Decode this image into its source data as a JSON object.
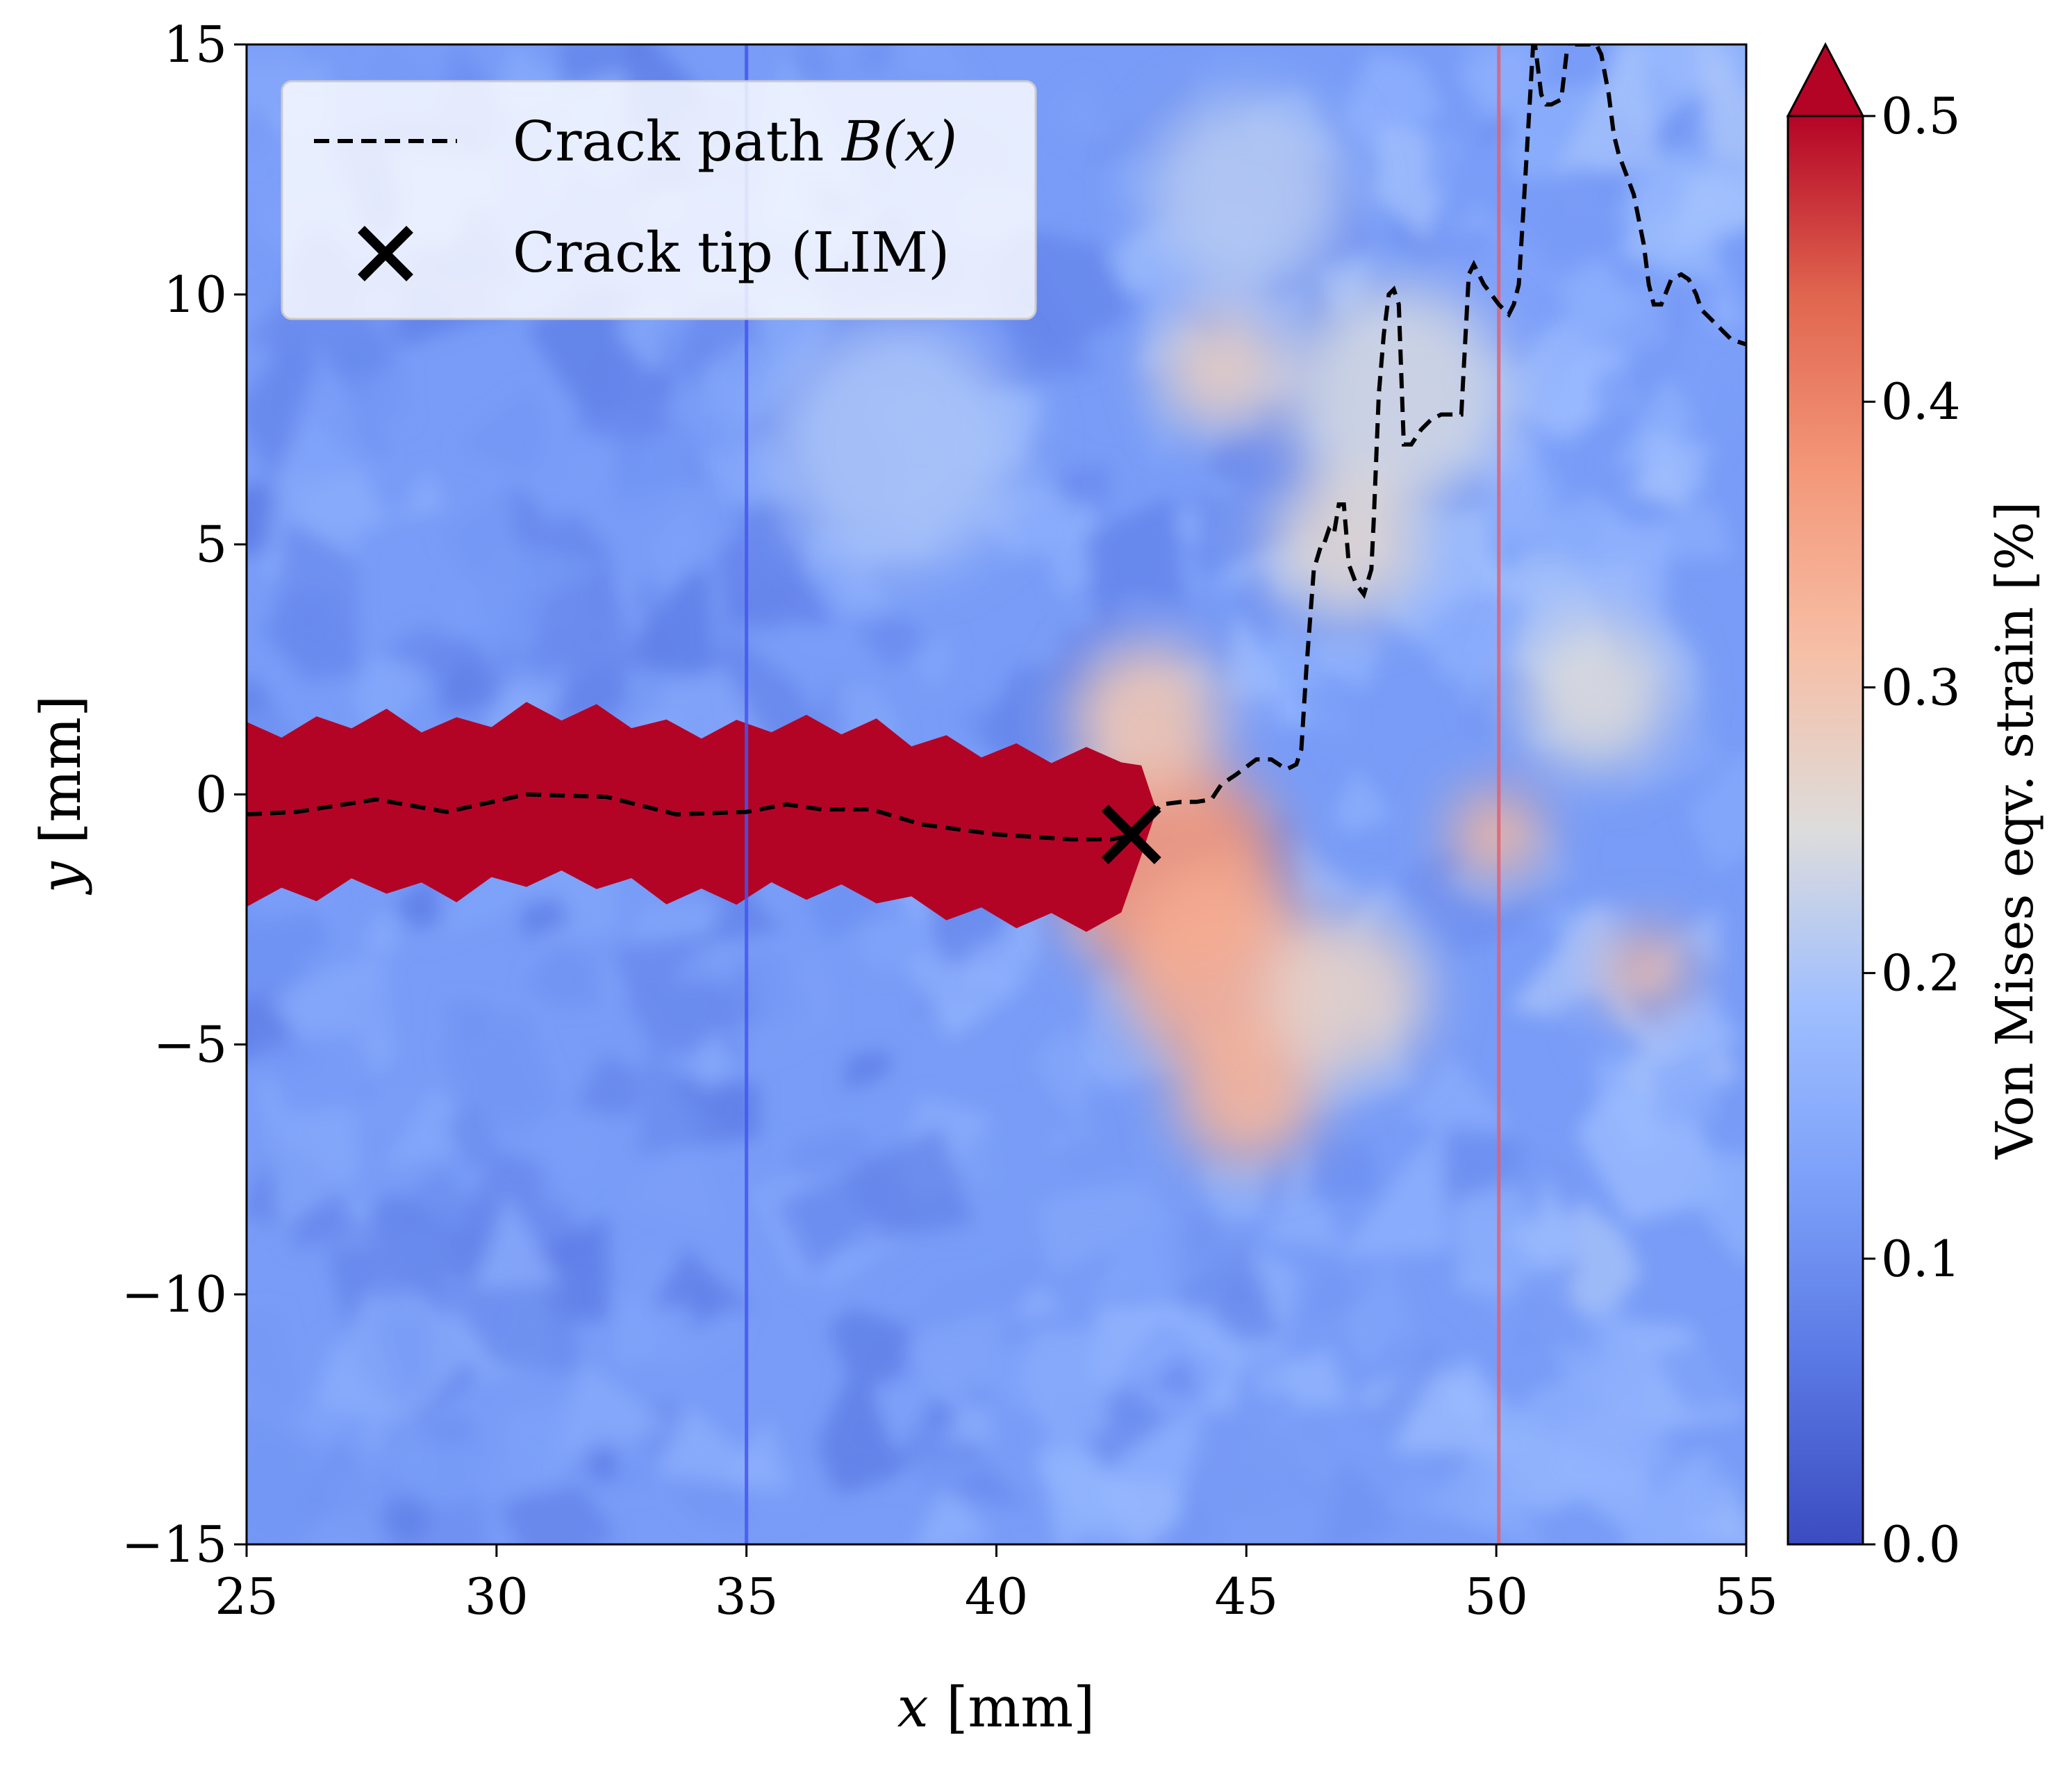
{
  "chart_data": {
    "type": "heatmap",
    "title": "",
    "xlabel": "x [mm]",
    "ylabel": "y [mm]",
    "xlim": [
      25,
      55
    ],
    "ylim": [
      -15,
      15
    ],
    "xticks": [
      25,
      30,
      35,
      40,
      45,
      50,
      55
    ],
    "yticks": [
      -15,
      -10,
      -5,
      0,
      5,
      10,
      15
    ],
    "xtick_labels": [
      "25",
      "30",
      "35",
      "40",
      "45",
      "50",
      "55"
    ],
    "ytick_labels": [
      "−15",
      "−10",
      "−5",
      "0",
      "5",
      "10",
      "15"
    ],
    "colorbar": {
      "label": "Von Mises eqv. strain [%]",
      "range": [
        0.0,
        0.5
      ],
      "ticks": [
        0.0,
        0.1,
        0.2,
        0.3,
        0.4,
        0.5
      ],
      "tick_labels": [
        "0.0",
        "0.1",
        "0.2",
        "0.3",
        "0.4",
        "0.5"
      ],
      "colormap": "coolwarm",
      "extend": "max"
    },
    "background_strain": 0.12,
    "process_zone": [
      {
        "x": 43.5,
        "y": -1.5,
        "r": 2.2,
        "strain": 0.38
      },
      {
        "x": 44.5,
        "y": -3.5,
        "r": 2.0,
        "strain": 0.34
      },
      {
        "x": 45.0,
        "y": -6.0,
        "r": 1.4,
        "strain": 0.33
      },
      {
        "x": 43.0,
        "y": 1.5,
        "r": 1.5,
        "strain": 0.3
      },
      {
        "x": 47.0,
        "y": -4.0,
        "r": 1.6,
        "strain": 0.27
      },
      {
        "x": 50.0,
        "y": -0.8,
        "r": 0.9,
        "strain": 0.33
      },
      {
        "x": 53.0,
        "y": -3.5,
        "r": 0.8,
        "strain": 0.33
      },
      {
        "x": 48.0,
        "y": 8.0,
        "r": 2.2,
        "strain": 0.24
      },
      {
        "x": 44.5,
        "y": 8.5,
        "r": 1.2,
        "strain": 0.28
      },
      {
        "x": 52.0,
        "y": 2.0,
        "r": 1.5,
        "strain": 0.25
      },
      {
        "x": 38.0,
        "y": 7.0,
        "r": 2.5,
        "strain": 0.2
      },
      {
        "x": 45.0,
        "y": 12.0,
        "r": 2.0,
        "strain": 0.21
      },
      {
        "x": 47.0,
        "y": 5.0,
        "r": 1.5,
        "strain": 0.26
      }
    ],
    "cracked_region": {
      "x_start": 25.0,
      "x_end": 43.2,
      "half_width": 1.6,
      "strain": 0.55
    },
    "vertical_lines": [
      {
        "x": 35.0,
        "color": "#4455ee"
      },
      {
        "x": 50.05,
        "color": "#e06070"
      }
    ],
    "series": [
      {
        "name": "Crack path B(x)",
        "style": "dashed",
        "color": "#000000",
        "x": [
          25.0,
          26.0,
          27.6,
          29.0,
          30.6,
          32.2,
          33.6,
          35.0,
          35.8,
          36.5,
          37.5,
          38.5,
          40.0,
          41.5,
          42.3,
          42.8,
          43.3,
          43.7,
          44.0,
          44.3,
          44.5,
          44.8,
          45.2,
          45.5,
          45.8,
          46.0,
          46.1,
          46.2,
          46.35,
          46.5,
          46.55,
          46.65,
          46.75,
          46.85,
          46.95,
          47.05,
          47.2,
          47.35,
          47.5,
          47.55,
          47.65,
          47.75,
          47.85,
          47.95,
          48.05,
          48.15,
          48.3,
          48.5,
          48.7,
          48.9,
          49.1,
          49.3,
          49.45,
          49.55,
          49.65,
          49.75,
          49.9,
          50.05,
          50.15,
          50.25,
          50.35,
          50.45,
          50.55,
          50.65,
          50.75,
          50.9,
          51.0,
          51.1,
          51.3,
          51.45,
          51.55,
          51.65,
          51.75,
          51.9,
          52.0,
          52.1,
          52.25,
          52.35,
          52.45,
          52.6,
          52.75,
          52.85,
          52.95,
          53.05,
          53.15,
          53.3,
          53.5,
          53.7,
          53.85,
          54.0,
          54.1,
          54.3,
          54.5,
          54.7,
          55.0
        ],
        "y": [
          -0.4,
          -0.35,
          -0.1,
          -0.35,
          0.0,
          -0.05,
          -0.4,
          -0.35,
          -0.2,
          -0.3,
          -0.3,
          -0.6,
          -0.8,
          -0.9,
          -0.9,
          -0.8,
          -0.2,
          -0.15,
          -0.15,
          -0.1,
          0.2,
          0.4,
          0.7,
          0.7,
          0.5,
          0.6,
          0.9,
          2.5,
          4.5,
          5.0,
          5.0,
          5.3,
          5.2,
          5.8,
          5.8,
          4.6,
          4.2,
          4.0,
          4.5,
          5.5,
          8.0,
          9.2,
          10.0,
          10.1,
          9.8,
          7.0,
          7.0,
          7.3,
          7.5,
          7.6,
          7.6,
          7.6,
          10.4,
          10.6,
          10.4,
          10.2,
          10.0,
          9.8,
          9.7,
          9.6,
          9.8,
          10.2,
          11.8,
          13.5,
          15.2,
          14.0,
          13.8,
          13.8,
          13.9,
          15.2,
          15.0,
          15.0,
          15.0,
          15.0,
          15.0,
          14.8,
          14.0,
          13.2,
          12.8,
          12.4,
          12.0,
          11.5,
          11.0,
          10.2,
          9.8,
          9.8,
          10.3,
          10.4,
          10.3,
          10.0,
          9.7,
          9.5,
          9.3,
          9.1,
          9.0
        ]
      }
    ],
    "crack_tip": {
      "name": "Crack tip (LIM)",
      "x": 42.7,
      "y": -0.8,
      "marker": "x"
    },
    "legend": {
      "location": "top-left",
      "entries": [
        "Crack path ",
        "Crack tip (LIM)"
      ],
      "math_label": "B(x)"
    }
  }
}
